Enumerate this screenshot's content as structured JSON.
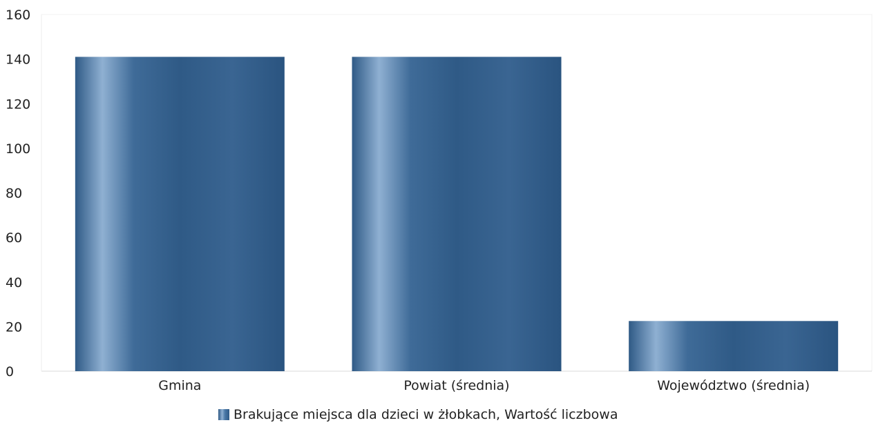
{
  "chart_data": {
    "type": "bar",
    "categories": [
      "Gmina",
      "Powiat (średnia)",
      "Województwo (średnia)"
    ],
    "series": [
      {
        "name": "Brakujące miejsca dla dzieci w żłobkach, Wartość liczbowa",
        "values": [
          141,
          141,
          22.5
        ]
      }
    ],
    "ylim": [
      0,
      160
    ],
    "yticks": [
      0,
      20,
      40,
      60,
      80,
      100,
      120,
      140,
      160
    ],
    "ytick_labels": [
      "0",
      "20",
      "40",
      "60",
      "80",
      "100",
      "120",
      "140",
      "160"
    ],
    "grid": false,
    "legend_position": "bottom-center"
  },
  "colors": {
    "bar_dark": "#2f5a86",
    "bar_mid": "#4a78a6",
    "bar_light": "#8fb0d2"
  },
  "legend": {
    "label": "Brakujące miejsca dla dzieci w żłobkach, Wartość liczbowa"
  }
}
